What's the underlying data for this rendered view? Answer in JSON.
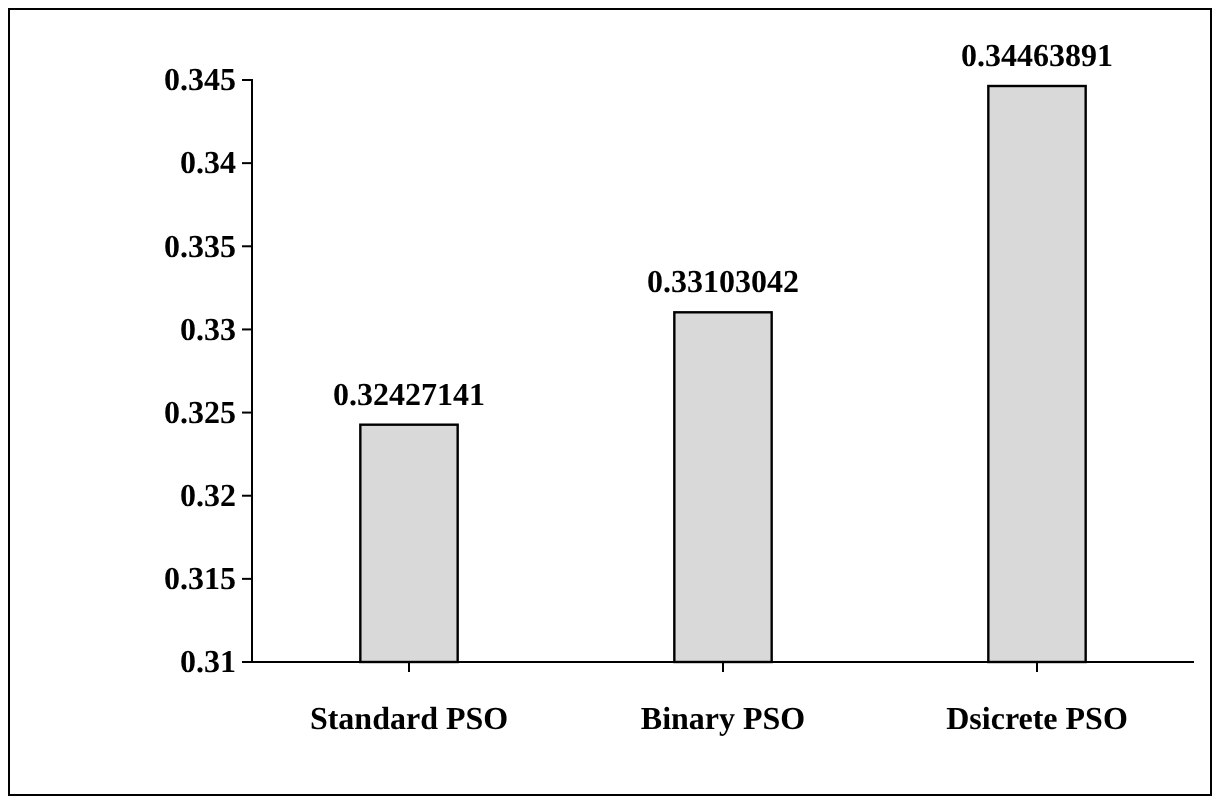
{
  "chart_data": {
    "type": "bar",
    "categories": [
      "Standard PSO",
      "Binary PSO",
      "Dsicrete PSO"
    ],
    "values": [
      0.32427141,
      0.33103042,
      0.34463891
    ],
    "color": "#d9d9d9",
    "ylim": [
      0.31,
      0.345
    ],
    "yticks": [
      0.31,
      0.315,
      0.32,
      0.325,
      0.33,
      0.335,
      0.34,
      0.345
    ],
    "grid": false,
    "data_labels": true
  }
}
